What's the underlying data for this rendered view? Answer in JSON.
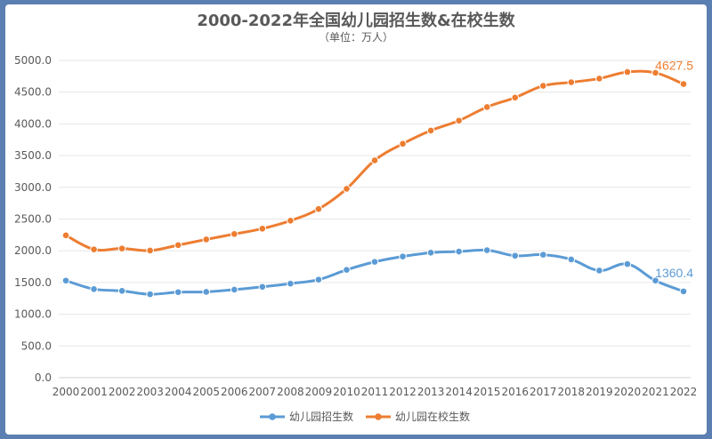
{
  "chart_data": {
    "type": "line",
    "title": "2000-2022年全国幼儿园招生数&在校生数",
    "subtitle": "（单位：万人）",
    "categories": [
      "2000",
      "2001",
      "2002",
      "2003",
      "2004",
      "2005",
      "2006",
      "2007",
      "2008",
      "2009",
      "2010",
      "2011",
      "2012",
      "2013",
      "2014",
      "2015",
      "2016",
      "2017",
      "2018",
      "2019",
      "2020",
      "2021",
      "2022"
    ],
    "ylim": [
      0,
      5000
    ],
    "yticks": [
      "0.0",
      "500.0",
      "1000.0",
      "1500.0",
      "2000.0",
      "2500.0",
      "3000.0",
      "3500.0",
      "4000.0",
      "4500.0",
      "5000.0"
    ],
    "grid": true,
    "legend_position": "bottom",
    "series": [
      {
        "name": "幼儿园招生数",
        "color": "#5b9bd5",
        "values": [
          1530,
          1396,
          1368,
          1315,
          1348,
          1352,
          1388,
          1432,
          1483,
          1545,
          1700,
          1826,
          1910,
          1970,
          1988,
          2009,
          1922,
          1938,
          1864,
          1688,
          1791,
          1530,
          1360.4
        ],
        "end_label": "1360.4"
      },
      {
        "name": "幼儿园在校生数",
        "color": "#ed7d31",
        "values": [
          2244,
          2022,
          2036,
          2004,
          2089,
          2179,
          2264,
          2349,
          2475,
          2658,
          2977,
          3425,
          3686,
          3895,
          4051,
          4265,
          4414,
          4600,
          4656,
          4714,
          4818,
          4805,
          4627.5
        ],
        "end_label": "4627.5"
      }
    ]
  }
}
